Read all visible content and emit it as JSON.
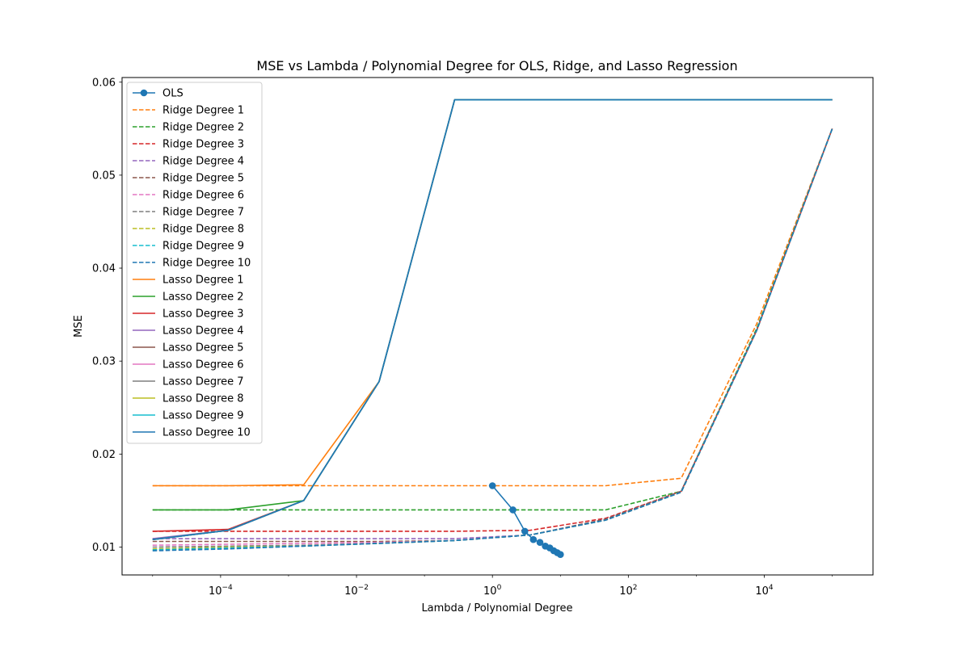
{
  "chart_data": {
    "type": "line",
    "title": "MSE vs Lambda / Polynomial Degree for OLS, Ridge, and Lasso Regression",
    "xlabel": "Lambda / Polynomial Degree",
    "ylabel": "MSE",
    "xscale": "log",
    "xlim": [
      3.55e-06,
      398100
    ],
    "ylim": [
      0.007,
      0.0605
    ],
    "x_ticks": [
      {
        "value": 0.0001,
        "label": "10",
        "exp": "−4"
      },
      {
        "value": 0.01,
        "label": "10",
        "exp": "−2"
      },
      {
        "value": 1,
        "label": "10",
        "exp": "0"
      },
      {
        "value": 100,
        "label": "10",
        "exp": "2"
      },
      {
        "value": 10000,
        "label": "10",
        "exp": "4"
      }
    ],
    "y_ticks": [
      {
        "value": 0.01,
        "label": "0.01"
      },
      {
        "value": 0.02,
        "label": "0.02"
      },
      {
        "value": 0.03,
        "label": "0.03"
      },
      {
        "value": 0.04,
        "label": "0.04"
      },
      {
        "value": 0.05,
        "label": "0.05"
      },
      {
        "value": 0.06,
        "label": "0.06"
      }
    ],
    "grid": false,
    "legend_position": "top-left",
    "lambdas": [
      1e-05,
      0.000129,
      0.00167,
      0.0215,
      0.278,
      3.59,
      46.4,
      599,
      7740,
      100000
    ],
    "series": [
      {
        "name": "OLS",
        "style": "solid-marker",
        "color": "#1f77b4",
        "x": [
          1,
          2,
          3,
          4,
          5,
          6,
          7,
          8,
          9,
          10
        ],
        "y": [
          0.0166,
          0.014,
          0.0117,
          0.0108,
          0.0105,
          0.0101,
          0.0099,
          0.0096,
          0.0094,
          0.0092
        ]
      },
      {
        "name": "Ridge Degree 1",
        "style": "dashed",
        "color": "#ff7f0e",
        "y": [
          0.0166,
          0.0166,
          0.0166,
          0.0166,
          0.0166,
          0.0166,
          0.0166,
          0.0174,
          0.034,
          0.055
        ]
      },
      {
        "name": "Ridge Degree 2",
        "style": "dashed",
        "color": "#2ca02c",
        "y": [
          0.014,
          0.014,
          0.014,
          0.014,
          0.014,
          0.014,
          0.014,
          0.016,
          0.0335,
          0.055
        ]
      },
      {
        "name": "Ridge Degree 3",
        "style": "dashed",
        "color": "#d62728",
        "y": [
          0.0117,
          0.0117,
          0.0117,
          0.0117,
          0.0117,
          0.0118,
          0.0131,
          0.016,
          0.0333,
          0.055
        ]
      },
      {
        "name": "Ridge Degree 4",
        "style": "dashed",
        "color": "#9467bd",
        "y": [
          0.0109,
          0.0109,
          0.0109,
          0.0109,
          0.0109,
          0.0113,
          0.013,
          0.016,
          0.0333,
          0.055
        ]
      },
      {
        "name": "Ridge Degree 5",
        "style": "dashed",
        "color": "#8c564b",
        "y": [
          0.0106,
          0.0106,
          0.0106,
          0.0106,
          0.0107,
          0.0113,
          0.013,
          0.016,
          0.0333,
          0.055
        ]
      },
      {
        "name": "Ridge Degree 6",
        "style": "dashed",
        "color": "#e377c2",
        "y": [
          0.0102,
          0.0103,
          0.0104,
          0.0105,
          0.0107,
          0.0113,
          0.0129,
          0.0159,
          0.0333,
          0.055
        ]
      },
      {
        "name": "Ridge Degree 7",
        "style": "dashed",
        "color": "#7f7f7f",
        "y": [
          0.01,
          0.0101,
          0.0102,
          0.0104,
          0.0107,
          0.0113,
          0.0129,
          0.0159,
          0.0333,
          0.055
        ]
      },
      {
        "name": "Ridge Degree 8",
        "style": "dashed",
        "color": "#bcbd22",
        "y": [
          0.0098,
          0.01,
          0.0101,
          0.0104,
          0.0107,
          0.0113,
          0.0129,
          0.0159,
          0.0333,
          0.055
        ]
      },
      {
        "name": "Ridge Degree 9",
        "style": "dashed",
        "color": "#17becf",
        "y": [
          0.0097,
          0.0099,
          0.0101,
          0.0104,
          0.0107,
          0.0113,
          0.0129,
          0.0159,
          0.0333,
          0.055
        ]
      },
      {
        "name": "Ridge Degree 10",
        "style": "dashed",
        "color": "#1f77b4",
        "y": [
          0.0096,
          0.0098,
          0.0101,
          0.0104,
          0.0107,
          0.0113,
          0.0129,
          0.0159,
          0.0333,
          0.055
        ]
      },
      {
        "name": "Lasso Degree 1",
        "style": "solid",
        "color": "#ff7f0e",
        "y": [
          0.0166,
          0.0166,
          0.0167,
          0.0278,
          0.0581,
          0.0581,
          0.0581,
          0.0581,
          0.0581,
          0.0581
        ]
      },
      {
        "name": "Lasso Degree 2",
        "style": "solid",
        "color": "#2ca02c",
        "y": [
          0.014,
          0.014,
          0.015,
          0.0278,
          0.0581,
          0.0581,
          0.0581,
          0.0581,
          0.0581,
          0.0581
        ]
      },
      {
        "name": "Lasso Degree 3",
        "style": "solid",
        "color": "#d62728",
        "y": [
          0.0117,
          0.0119,
          0.015,
          0.0278,
          0.0581,
          0.0581,
          0.0581,
          0.0581,
          0.0581,
          0.0581
        ]
      },
      {
        "name": "Lasso Degree 4",
        "style": "solid",
        "color": "#9467bd",
        "y": [
          0.0109,
          0.0118,
          0.015,
          0.0278,
          0.0581,
          0.0581,
          0.0581,
          0.0581,
          0.0581,
          0.0581
        ]
      },
      {
        "name": "Lasso Degree 5",
        "style": "solid",
        "color": "#8c564b",
        "y": [
          0.0108,
          0.0118,
          0.015,
          0.0278,
          0.0581,
          0.0581,
          0.0581,
          0.0581,
          0.0581,
          0.0581
        ]
      },
      {
        "name": "Lasso Degree 6",
        "style": "solid",
        "color": "#e377c2",
        "y": [
          0.0108,
          0.0118,
          0.015,
          0.0278,
          0.0581,
          0.0581,
          0.0581,
          0.0581,
          0.0581,
          0.0581
        ]
      },
      {
        "name": "Lasso Degree 7",
        "style": "solid",
        "color": "#7f7f7f",
        "y": [
          0.0108,
          0.0118,
          0.015,
          0.0278,
          0.0581,
          0.0581,
          0.0581,
          0.0581,
          0.0581,
          0.0581
        ]
      },
      {
        "name": "Lasso Degree 8",
        "style": "solid",
        "color": "#bcbd22",
        "y": [
          0.0108,
          0.0118,
          0.015,
          0.0278,
          0.0581,
          0.0581,
          0.0581,
          0.0581,
          0.0581,
          0.0581
        ]
      },
      {
        "name": "Lasso Degree 9",
        "style": "solid",
        "color": "#17becf",
        "y": [
          0.0108,
          0.0118,
          0.015,
          0.0278,
          0.0581,
          0.0581,
          0.0581,
          0.0581,
          0.0581,
          0.0581
        ]
      },
      {
        "name": "Lasso Degree 10",
        "style": "solid",
        "color": "#1f77b4",
        "y": [
          0.0108,
          0.0118,
          0.015,
          0.0278,
          0.0581,
          0.0581,
          0.0581,
          0.0581,
          0.0581,
          0.0581
        ]
      }
    ]
  }
}
